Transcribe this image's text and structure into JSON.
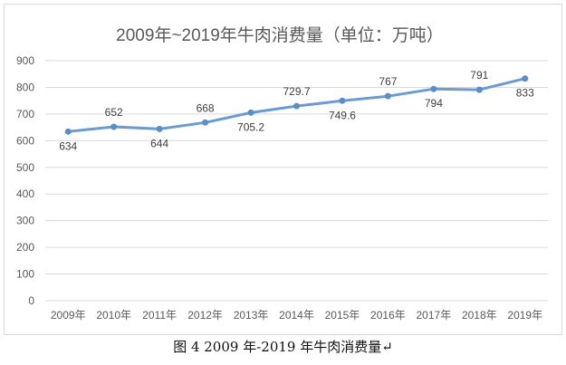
{
  "chart_data": {
    "type": "line",
    "title": "2009年~2019年牛肉消费量（单位：万吨）",
    "categories": [
      "2009年",
      "2010年",
      "2011年",
      "2012年",
      "2013年",
      "2014年",
      "2015年",
      "2016年",
      "2017年",
      "2018年",
      "2019年"
    ],
    "series": [
      {
        "values": [
          634,
          652,
          644,
          668,
          705.2,
          729.7,
          749.6,
          767,
          794,
          791,
          833
        ]
      }
    ],
    "data_labels": [
      "634",
      "652",
      "644",
      "668",
      "705.2",
      "729.7",
      "749.6",
      "767",
      "794",
      "791",
      "833"
    ],
    "ylim": [
      0,
      900
    ],
    "yticks": [
      0,
      100,
      200,
      300,
      400,
      500,
      600,
      700,
      800,
      900
    ],
    "grid": true,
    "legend": "none",
    "colors": {
      "line": "#6a9bd1",
      "marker": "#5b8ec9",
      "grid": "#d9d9d9",
      "text": "#595959"
    }
  },
  "caption": "图 4  2009 年-2019 年牛肉消费量↵"
}
